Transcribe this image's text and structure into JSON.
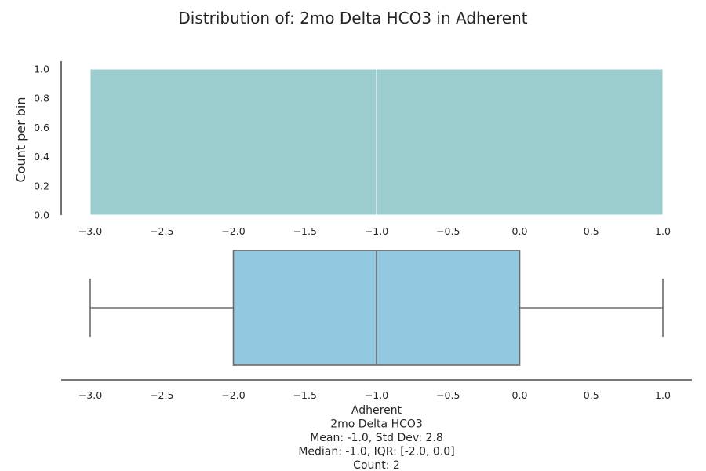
{
  "chart_data": [
    {
      "type": "histogram",
      "title": "Distribution of: 2mo Delta HCO3 in Adherent",
      "ylabel": "Count per bin",
      "bins": [
        {
          "x0": -3.0,
          "x1": -1.0,
          "count": 1
        },
        {
          "x0": -1.0,
          "x1": 1.0,
          "count": 1
        }
      ],
      "xlim": [
        -3.2,
        1.2
      ],
      "ylim": [
        0,
        1.0
      ],
      "xticks": [
        "−3.0",
        "−2.5",
        "−2.0",
        "−1.5",
        "−1.0",
        "−0.5",
        "0.0",
        "0.5",
        "1.0"
      ],
      "yticks": [
        "0.0",
        "0.2",
        "0.4",
        "0.6",
        "0.8",
        "1.0"
      ],
      "color": "#9ccdce"
    },
    {
      "type": "boxplot",
      "min": -3.0,
      "q1": -2.0,
      "median": -1.0,
      "q3": 0.0,
      "max": 1.0,
      "xlim": [
        -3.2,
        1.2
      ],
      "xticks": [
        "−3.0",
        "−2.5",
        "−2.0",
        "−1.5",
        "−1.0",
        "−0.5",
        "0.0",
        "0.5",
        "1.0"
      ],
      "color": "#92c9e0",
      "xlabel_lines": [
        "Adherent",
        "2mo Delta HCO3",
        "Mean: -1.0, Std Dev: 2.8",
        "Median: -1.0, IQR: [-2.0, 0.0]",
        "Count: 2"
      ]
    }
  ]
}
